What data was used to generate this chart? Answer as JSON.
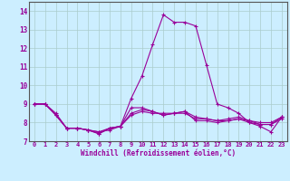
{
  "xlabel": "Windchill (Refroidissement éolien,°C)",
  "background_color": "#cceeff",
  "grid_color": "#aacccc",
  "line_color": "#990099",
  "x_hours": [
    0,
    1,
    2,
    3,
    4,
    5,
    6,
    7,
    8,
    9,
    10,
    11,
    12,
    13,
    14,
    15,
    16,
    17,
    18,
    19,
    20,
    21,
    22,
    23
  ],
  "line1": [
    9.0,
    9.0,
    8.4,
    7.7,
    7.7,
    7.6,
    7.4,
    7.7,
    7.8,
    9.3,
    10.5,
    12.2,
    13.8,
    13.4,
    13.4,
    13.2,
    11.1,
    9.0,
    8.8,
    8.5,
    8.0,
    7.8,
    7.5,
    8.3
  ],
  "line2": [
    9.0,
    9.0,
    8.4,
    7.7,
    7.7,
    7.6,
    7.4,
    7.7,
    7.8,
    8.8,
    8.8,
    8.6,
    8.4,
    8.5,
    8.6,
    8.1,
    8.1,
    8.0,
    8.1,
    8.2,
    8.0,
    7.9,
    7.9,
    8.3
  ],
  "line3": [
    9.0,
    9.0,
    8.5,
    7.7,
    7.7,
    7.6,
    7.5,
    7.7,
    7.8,
    8.5,
    8.7,
    8.6,
    8.4,
    8.5,
    8.6,
    8.3,
    8.2,
    8.1,
    8.2,
    8.3,
    8.1,
    8.0,
    8.0,
    8.3
  ],
  "line4": [
    9.0,
    9.0,
    8.4,
    7.7,
    7.7,
    7.6,
    7.5,
    7.6,
    7.8,
    8.4,
    8.6,
    8.5,
    8.5,
    8.5,
    8.5,
    8.2,
    8.2,
    8.1,
    8.1,
    8.2,
    8.1,
    7.9,
    7.9,
    8.2
  ],
  "ylim": [
    7.0,
    14.5
  ],
  "yticks": [
    7,
    8,
    9,
    10,
    11,
    12,
    13,
    14
  ],
  "xlim": [
    -0.5,
    23.5
  ],
  "xticks": [
    0,
    1,
    2,
    3,
    4,
    5,
    6,
    7,
    8,
    9,
    10,
    11,
    12,
    13,
    14,
    15,
    16,
    17,
    18,
    19,
    20,
    21,
    22,
    23
  ],
  "tick_fontsize": 5.0,
  "xlabel_fontsize": 5.5
}
